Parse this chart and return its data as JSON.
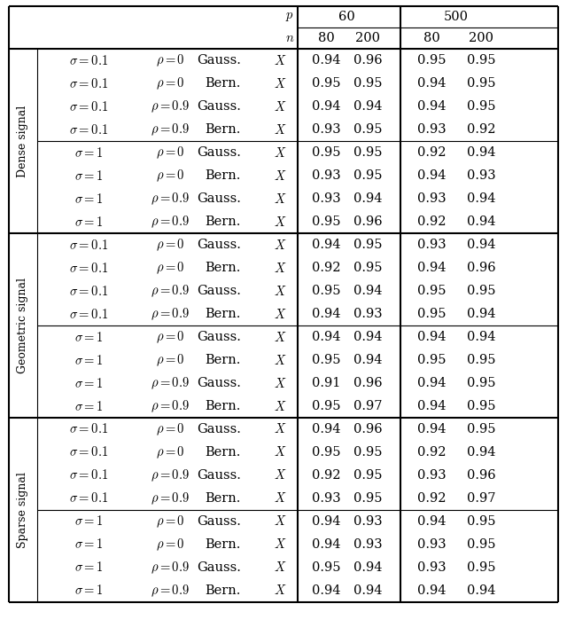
{
  "sections": [
    {
      "label": "Dense signal",
      "subsections": [
        {
          "rows": [
            {
              "sigma": "0.1",
              "rho": "0",
              "dist": "Gauss.",
              "vals": [
                "0.94",
                "0.96",
                "0.95",
                "0.95"
              ]
            },
            {
              "sigma": "0.1",
              "rho": "0",
              "dist": "Bern.",
              "vals": [
                "0.95",
                "0.95",
                "0.94",
                "0.95"
              ]
            },
            {
              "sigma": "0.1",
              "rho": "0.9",
              "dist": "Gauss.",
              "vals": [
                "0.94",
                "0.94",
                "0.94",
                "0.95"
              ]
            },
            {
              "sigma": "0.1",
              "rho": "0.9",
              "dist": "Bern.",
              "vals": [
                "0.93",
                "0.95",
                "0.93",
                "0.92"
              ]
            }
          ]
        },
        {
          "rows": [
            {
              "sigma": "1",
              "rho": "0",
              "dist": "Gauss.",
              "vals": [
                "0.95",
                "0.95",
                "0.92",
                "0.94"
              ]
            },
            {
              "sigma": "1",
              "rho": "0",
              "dist": "Bern.",
              "vals": [
                "0.93",
                "0.95",
                "0.94",
                "0.93"
              ]
            },
            {
              "sigma": "1",
              "rho": "0.9",
              "dist": "Gauss.",
              "vals": [
                "0.93",
                "0.94",
                "0.93",
                "0.94"
              ]
            },
            {
              "sigma": "1",
              "rho": "0.9",
              "dist": "Bern.",
              "vals": [
                "0.95",
                "0.96",
                "0.92",
                "0.94"
              ]
            }
          ]
        }
      ]
    },
    {
      "label": "Geometric signal",
      "subsections": [
        {
          "rows": [
            {
              "sigma": "0.1",
              "rho": "0",
              "dist": "Gauss.",
              "vals": [
                "0.94",
                "0.95",
                "0.93",
                "0.94"
              ]
            },
            {
              "sigma": "0.1",
              "rho": "0",
              "dist": "Bern.",
              "vals": [
                "0.92",
                "0.95",
                "0.94",
                "0.96"
              ]
            },
            {
              "sigma": "0.1",
              "rho": "0.9",
              "dist": "Gauss.",
              "vals": [
                "0.95",
                "0.94",
                "0.95",
                "0.95"
              ]
            },
            {
              "sigma": "0.1",
              "rho": "0.9",
              "dist": "Bern.",
              "vals": [
                "0.94",
                "0.93",
                "0.95",
                "0.94"
              ]
            }
          ]
        },
        {
          "rows": [
            {
              "sigma": "1",
              "rho": "0",
              "dist": "Gauss.",
              "vals": [
                "0.94",
                "0.94",
                "0.94",
                "0.94"
              ]
            },
            {
              "sigma": "1",
              "rho": "0",
              "dist": "Bern.",
              "vals": [
                "0.95",
                "0.94",
                "0.95",
                "0.95"
              ]
            },
            {
              "sigma": "1",
              "rho": "0.9",
              "dist": "Gauss.",
              "vals": [
                "0.91",
                "0.96",
                "0.94",
                "0.95"
              ]
            },
            {
              "sigma": "1",
              "rho": "0.9",
              "dist": "Bern.",
              "vals": [
                "0.95",
                "0.97",
                "0.94",
                "0.95"
              ]
            }
          ]
        }
      ]
    },
    {
      "label": "Sparse signal",
      "subsections": [
        {
          "rows": [
            {
              "sigma": "0.1",
              "rho": "0",
              "dist": "Gauss.",
              "vals": [
                "0.94",
                "0.96",
                "0.94",
                "0.95"
              ]
            },
            {
              "sigma": "0.1",
              "rho": "0",
              "dist": "Bern.",
              "vals": [
                "0.95",
                "0.95",
                "0.92",
                "0.94"
              ]
            },
            {
              "sigma": "0.1",
              "rho": "0.9",
              "dist": "Gauss.",
              "vals": [
                "0.92",
                "0.95",
                "0.93",
                "0.96"
              ]
            },
            {
              "sigma": "0.1",
              "rho": "0.9",
              "dist": "Bern.",
              "vals": [
                "0.93",
                "0.95",
                "0.92",
                "0.97"
              ]
            }
          ]
        },
        {
          "rows": [
            {
              "sigma": "1",
              "rho": "0",
              "dist": "Gauss.",
              "vals": [
                "0.94",
                "0.93",
                "0.94",
                "0.95"
              ]
            },
            {
              "sigma": "1",
              "rho": "0",
              "dist": "Bern.",
              "vals": [
                "0.94",
                "0.93",
                "0.93",
                "0.95"
              ]
            },
            {
              "sigma": "1",
              "rho": "0.9",
              "dist": "Gauss.",
              "vals": [
                "0.95",
                "0.94",
                "0.93",
                "0.95"
              ]
            },
            {
              "sigma": "1",
              "rho": "0.9",
              "dist": "Bern.",
              "vals": [
                "0.94",
                "0.94",
                "0.94",
                "0.94"
              ]
            }
          ]
        }
      ]
    }
  ],
  "lw_thick": 1.5,
  "lw_thin": 0.8,
  "fs_main": 10.5,
  "fs_header": 10.5,
  "fs_label": 9.0
}
